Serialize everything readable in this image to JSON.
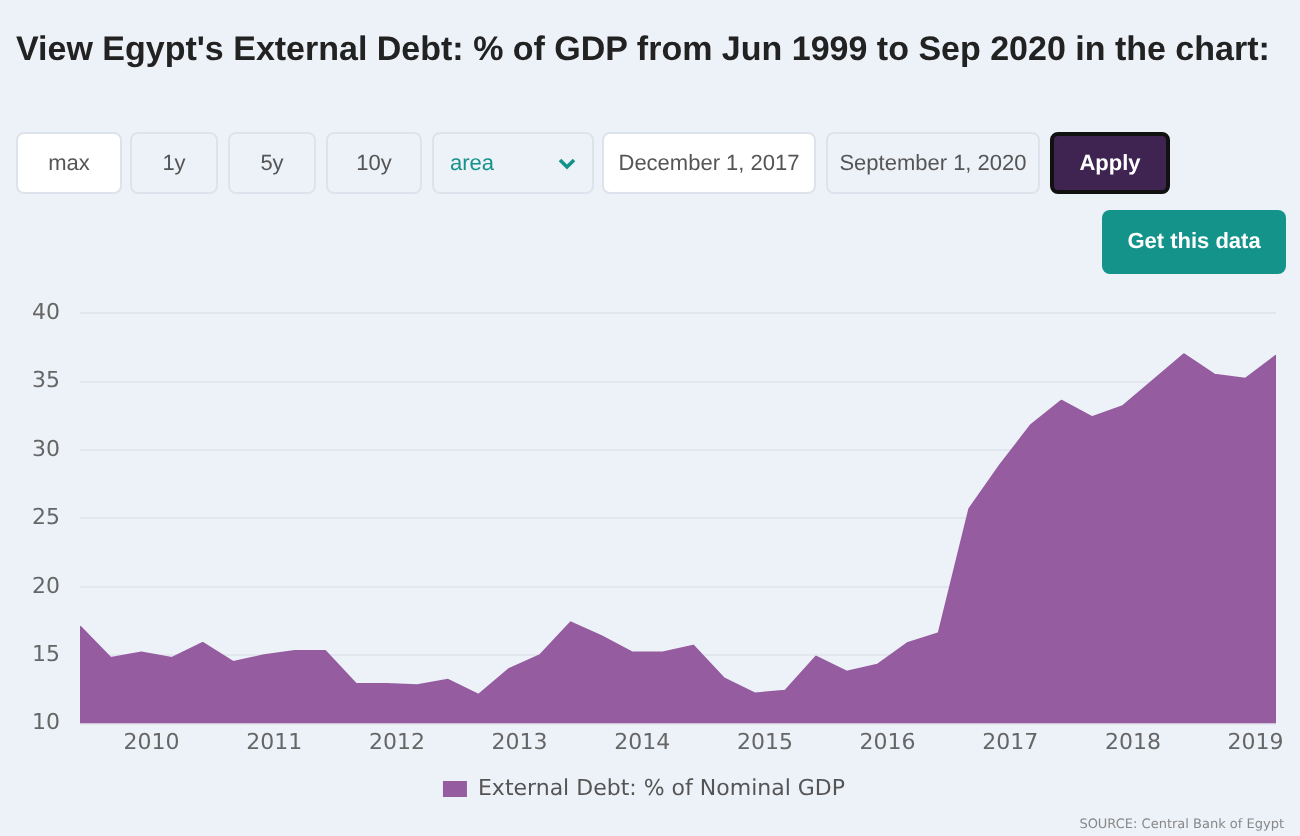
{
  "chart_data": {
    "type": "area",
    "title": "View Egypt's External Debt: % of GDP from Jun 1999 to Sep 2020 in the chart:",
    "x": [
      "2009-06",
      "2009-09",
      "2009-12",
      "2010-03",
      "2010-06",
      "2010-09",
      "2010-12",
      "2011-03",
      "2011-06",
      "2011-09",
      "2011-12",
      "2012-03",
      "2012-06",
      "2012-09",
      "2012-12",
      "2013-03",
      "2013-06",
      "2013-09",
      "2013-12",
      "2014-03",
      "2014-06",
      "2014-09",
      "2014-12",
      "2015-03",
      "2015-06",
      "2015-09",
      "2015-12",
      "2016-03",
      "2016-06",
      "2016-09",
      "2016-12",
      "2017-03",
      "2017-06",
      "2017-09",
      "2017-12",
      "2018-03",
      "2018-06",
      "2018-09",
      "2018-12",
      "2019-03"
    ],
    "series": [
      {
        "name": "External Debt: % of Nominal GDP",
        "color": "#955ca0",
        "values": [
          17.1,
          14.8,
          15.2,
          14.8,
          15.9,
          14.5,
          15.0,
          15.3,
          15.3,
          12.9,
          12.9,
          12.8,
          13.2,
          12.1,
          14.0,
          15.0,
          17.4,
          16.4,
          15.2,
          15.2,
          15.7,
          13.3,
          12.2,
          12.4,
          14.9,
          13.8,
          14.3,
          15.9,
          16.6,
          25.7,
          28.9,
          31.8,
          33.6,
          32.4,
          33.2,
          35.1,
          37.0,
          35.5,
          35.2,
          36.9
        ]
      }
    ],
    "xlim": [
      "2009-06",
      "2019-03"
    ],
    "xticks": [
      "2010",
      "2011",
      "2012",
      "2013",
      "2014",
      "2015",
      "2016",
      "2017",
      "2018",
      "2019"
    ],
    "ylim": [
      10,
      40
    ],
    "yticks": [
      10,
      15,
      20,
      25,
      30,
      35,
      40
    ],
    "grid": "y",
    "legend": "bottom",
    "marker": "none",
    "annotations": [
      "max",
      "1y",
      "5y",
      "10y",
      "area",
      "December 1, 2017",
      "September 1, 2020",
      "Apply",
      "Get this data",
      "SOURCE: Central Bank of Egypt"
    ]
  }
}
